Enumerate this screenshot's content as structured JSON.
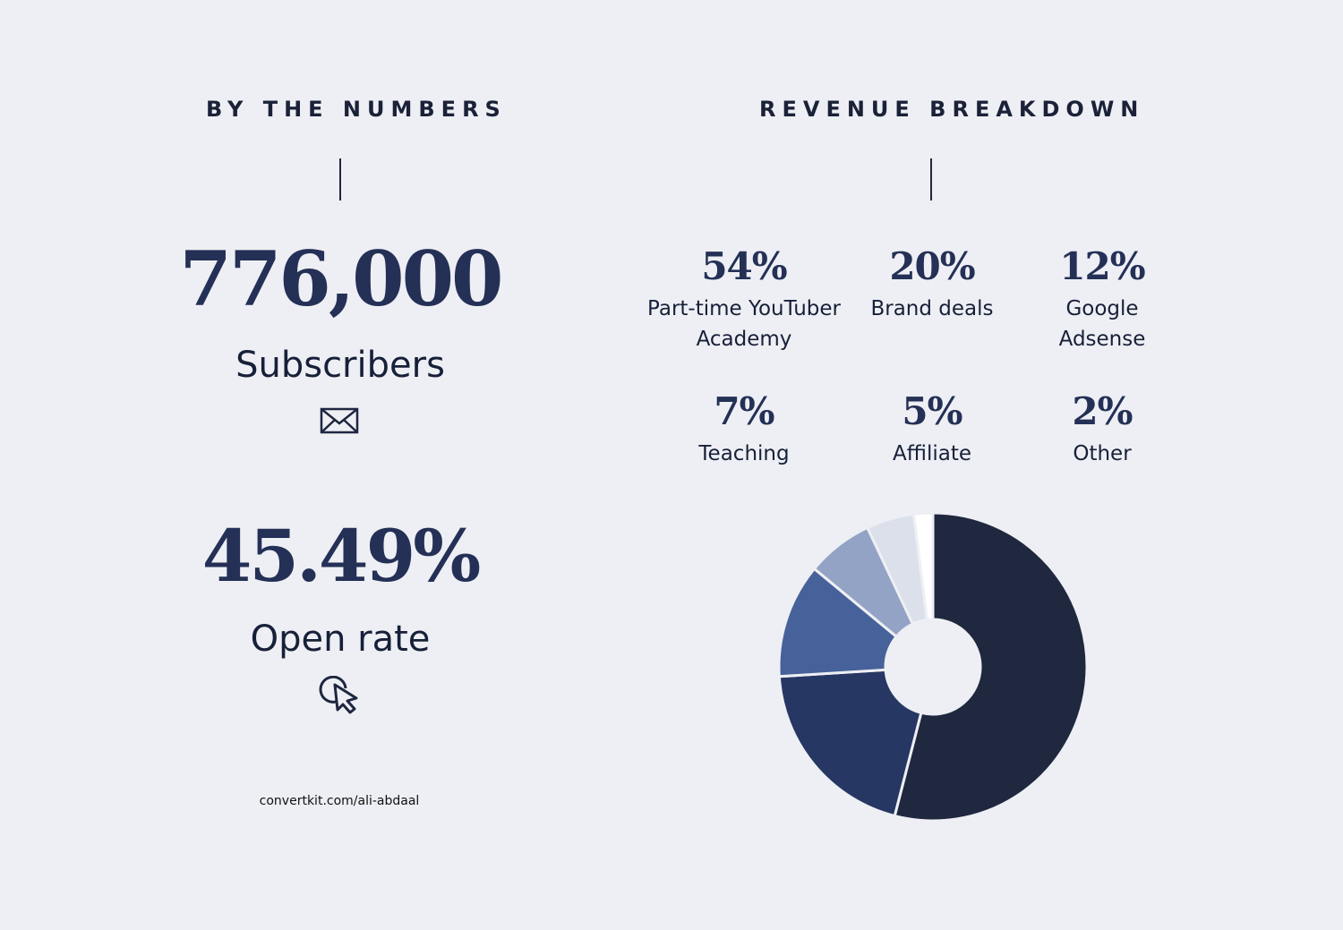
{
  "left": {
    "heading": "BY THE NUMBERS",
    "subscribers_value": "776,000",
    "subscribers_label": "Subscribers",
    "open_rate_value": "45.49%",
    "open_rate_label": "Open rate",
    "footer_link": "convertkit.com/ali-abdaal",
    "icons": [
      "envelope-icon",
      "cursor-click-icon"
    ]
  },
  "right": {
    "heading": "REVENUE BREAKDOWN",
    "items": [
      {
        "pct": "54%",
        "label": "Part-time YouTuber Academy"
      },
      {
        "pct": "20%",
        "label": "Brand deals"
      },
      {
        "pct": "12%",
        "label": "Google Adsense"
      },
      {
        "pct": "7%",
        "label": "Teaching"
      },
      {
        "pct": "5%",
        "label": "Affiliate"
      },
      {
        "pct": "2%",
        "label": "Other"
      }
    ]
  },
  "chart_data": {
    "type": "pie",
    "title": "REVENUE BREAKDOWN",
    "categories": [
      "Part-time YouTuber Academy",
      "Brand deals",
      "Google Adsense",
      "Teaching",
      "Affiliate",
      "Other"
    ],
    "values": [
      54,
      20,
      12,
      7,
      5,
      2
    ],
    "colors": [
      "#1f283f",
      "#263763",
      "#47629a",
      "#93a3c5",
      "#dbe0ea",
      "#ffffff"
    ],
    "donut": true,
    "start": "top",
    "direction": "clockwise"
  },
  "colors": {
    "background": "#eeeff4",
    "accent": "#243056"
  }
}
